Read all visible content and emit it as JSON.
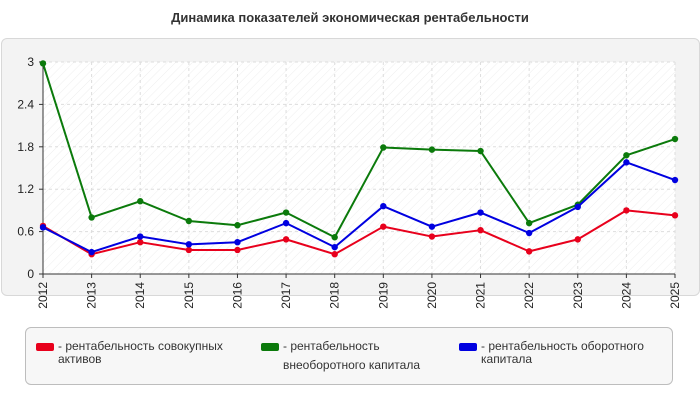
{
  "chart_data": {
    "type": "line",
    "title": "Динамика показателей экономическая рентабельности",
    "xlabel": "",
    "ylabel": "",
    "x": [
      "2012",
      "2013",
      "2014",
      "2015",
      "2016",
      "2017",
      "2018",
      "2019",
      "2020",
      "2021",
      "2022",
      "2023",
      "2024",
      "2025"
    ],
    "ylim": [
      0,
      3
    ],
    "yticks": [
      "0",
      "0.6",
      "1.2",
      "1.8",
      "2.4",
      "3"
    ],
    "grid": true,
    "legend_position": "bottom",
    "series": [
      {
        "name": "рентабельность совокупных активов",
        "color": "#e8001c",
        "values": [
          0.68,
          0.28,
          0.45,
          0.34,
          0.34,
          0.49,
          0.28,
          0.67,
          0.53,
          0.62,
          0.32,
          0.49,
          0.9,
          0.83
        ]
      },
      {
        "name": "рентабельность внеоборотного капитала",
        "color": "#0b7a0b",
        "values": [
          2.98,
          0.8,
          1.03,
          0.75,
          0.69,
          0.87,
          0.52,
          1.79,
          1.76,
          1.74,
          0.72,
          0.98,
          1.68,
          1.91
        ]
      },
      {
        "name": "рентабельность оборотного капитала",
        "color": "#0000e0",
        "values": [
          0.66,
          0.31,
          0.53,
          0.42,
          0.45,
          0.72,
          0.38,
          0.96,
          0.67,
          0.87,
          0.58,
          0.95,
          1.58,
          1.33
        ]
      }
    ]
  },
  "legend": {
    "items": [
      {
        "label_line1": "- рентабельность совокупных",
        "label_line2": "активов"
      },
      {
        "label_line1": "- рентабельность",
        "label_line2": "внеоборотного капитала"
      },
      {
        "label_line1": "- рентабельность оборотного",
        "label_line2": "капитала"
      }
    ]
  }
}
